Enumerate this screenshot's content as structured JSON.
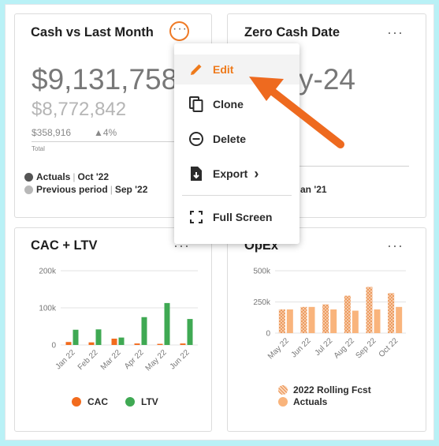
{
  "cards": {
    "cash": {
      "title": "Cash vs Last Month",
      "main_value": "$9,131,758",
      "prev_value": "$8,772,842",
      "delta_value": "$358,916",
      "delta_pct": "▲4%",
      "total_label": "Total",
      "legend_actuals_label": "Actuals",
      "legend_actuals_period": "Oct '22",
      "legend_prev_label": "Previous period",
      "legend_prev_period": "Sep '22"
    },
    "zero_cash": {
      "title": "Zero Cash Date",
      "value_fragment": "y-24",
      "footer_fragment": "an '21"
    },
    "cac_ltv": {
      "title": "CAC + LTV",
      "legend_cac": "CAC",
      "legend_ltv": "LTV"
    },
    "opex": {
      "title": "OpEx",
      "legend_fcst": "2022 Rolling Fcst",
      "legend_actuals": "Actuals"
    }
  },
  "menu": {
    "items": [
      {
        "label": "Edit",
        "icon": "pencil-icon"
      },
      {
        "label": "Clone",
        "icon": "copy-icon"
      },
      {
        "label": "Delete",
        "icon": "minus-circle-icon"
      },
      {
        "label": "Export",
        "icon": "export-icon"
      },
      {
        "label": "Full Screen",
        "icon": "fullscreen-icon"
      }
    ],
    "export_chevron": "›"
  },
  "colors": {
    "accent": "#ef7a26",
    "cac": "#f26b1d",
    "ltv": "#3fa953",
    "opex_fcst": "#f2a571",
    "opex_actuals": "#f9b47c",
    "actuals_dot": "#555555",
    "prev_dot": "#b8b8b8"
  },
  "chart_data": [
    {
      "type": "bar",
      "title": "CAC + LTV",
      "categories": [
        "Jan 22",
        "Feb 22",
        "Mar 22",
        "Apr 22",
        "May 22",
        "Jun 22"
      ],
      "series": [
        {
          "name": "CAC",
          "values": [
            8000,
            7000,
            17000,
            4000,
            3000,
            4000
          ]
        },
        {
          "name": "LTV",
          "values": [
            41000,
            42000,
            20000,
            75000,
            113000,
            70000
          ]
        }
      ],
      "yticks": [
        "0",
        "100k",
        "200k"
      ],
      "ylim": [
        0,
        200000
      ],
      "legend_position": "bottom"
    },
    {
      "type": "bar",
      "title": "OpEx",
      "categories": [
        "May 22",
        "Jun 22",
        "Jul 22",
        "Aug 22",
        "Sep 22",
        "Oct 22"
      ],
      "series": [
        {
          "name": "2022 Rolling Fcst",
          "values": [
            190000,
            210000,
            230000,
            300000,
            370000,
            320000
          ]
        },
        {
          "name": "Actuals",
          "values": [
            190000,
            210000,
            190000,
            180000,
            190000,
            210000
          ]
        }
      ],
      "yticks": [
        "0",
        "250k",
        "500k"
      ],
      "ylim": [
        0,
        500000
      ],
      "legend_position": "bottom"
    }
  ]
}
